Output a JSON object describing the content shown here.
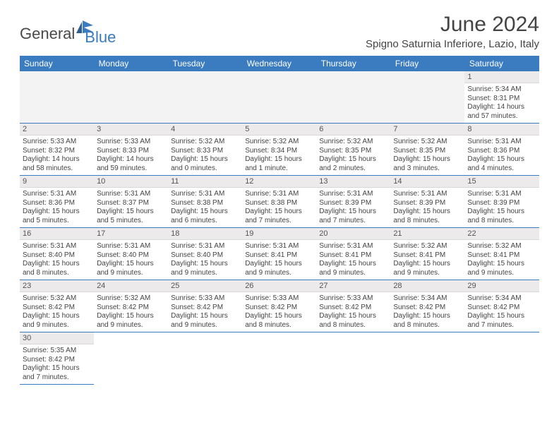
{
  "logo": {
    "general": "General",
    "blue": "Blue"
  },
  "title": "June 2024",
  "location": "Spigno Saturnia Inferiore, Lazio, Italy",
  "colors": {
    "header_bg": "#3b7bbf",
    "header_fg": "#ffffff",
    "daybar_bg": "#eceaea",
    "border": "#3b7bbf",
    "text": "#444444"
  },
  "weekdays": [
    "Sunday",
    "Monday",
    "Tuesday",
    "Wednesday",
    "Thursday",
    "Friday",
    "Saturday"
  ],
  "weeks": [
    [
      null,
      null,
      null,
      null,
      null,
      null,
      {
        "n": "1",
        "sr": "Sunrise: 5:34 AM",
        "ss": "Sunset: 8:31 PM",
        "dl": "Daylight: 14 hours and 57 minutes."
      }
    ],
    [
      {
        "n": "2",
        "sr": "Sunrise: 5:33 AM",
        "ss": "Sunset: 8:32 PM",
        "dl": "Daylight: 14 hours and 58 minutes."
      },
      {
        "n": "3",
        "sr": "Sunrise: 5:33 AM",
        "ss": "Sunset: 8:33 PM",
        "dl": "Daylight: 14 hours and 59 minutes."
      },
      {
        "n": "4",
        "sr": "Sunrise: 5:32 AM",
        "ss": "Sunset: 8:33 PM",
        "dl": "Daylight: 15 hours and 0 minutes."
      },
      {
        "n": "5",
        "sr": "Sunrise: 5:32 AM",
        "ss": "Sunset: 8:34 PM",
        "dl": "Daylight: 15 hours and 1 minute."
      },
      {
        "n": "6",
        "sr": "Sunrise: 5:32 AM",
        "ss": "Sunset: 8:35 PM",
        "dl": "Daylight: 15 hours and 2 minutes."
      },
      {
        "n": "7",
        "sr": "Sunrise: 5:32 AM",
        "ss": "Sunset: 8:35 PM",
        "dl": "Daylight: 15 hours and 3 minutes."
      },
      {
        "n": "8",
        "sr": "Sunrise: 5:31 AM",
        "ss": "Sunset: 8:36 PM",
        "dl": "Daylight: 15 hours and 4 minutes."
      }
    ],
    [
      {
        "n": "9",
        "sr": "Sunrise: 5:31 AM",
        "ss": "Sunset: 8:36 PM",
        "dl": "Daylight: 15 hours and 5 minutes."
      },
      {
        "n": "10",
        "sr": "Sunrise: 5:31 AM",
        "ss": "Sunset: 8:37 PM",
        "dl": "Daylight: 15 hours and 5 minutes."
      },
      {
        "n": "11",
        "sr": "Sunrise: 5:31 AM",
        "ss": "Sunset: 8:38 PM",
        "dl": "Daylight: 15 hours and 6 minutes."
      },
      {
        "n": "12",
        "sr": "Sunrise: 5:31 AM",
        "ss": "Sunset: 8:38 PM",
        "dl": "Daylight: 15 hours and 7 minutes."
      },
      {
        "n": "13",
        "sr": "Sunrise: 5:31 AM",
        "ss": "Sunset: 8:39 PM",
        "dl": "Daylight: 15 hours and 7 minutes."
      },
      {
        "n": "14",
        "sr": "Sunrise: 5:31 AM",
        "ss": "Sunset: 8:39 PM",
        "dl": "Daylight: 15 hours and 8 minutes."
      },
      {
        "n": "15",
        "sr": "Sunrise: 5:31 AM",
        "ss": "Sunset: 8:39 PM",
        "dl": "Daylight: 15 hours and 8 minutes."
      }
    ],
    [
      {
        "n": "16",
        "sr": "Sunrise: 5:31 AM",
        "ss": "Sunset: 8:40 PM",
        "dl": "Daylight: 15 hours and 8 minutes."
      },
      {
        "n": "17",
        "sr": "Sunrise: 5:31 AM",
        "ss": "Sunset: 8:40 PM",
        "dl": "Daylight: 15 hours and 9 minutes."
      },
      {
        "n": "18",
        "sr": "Sunrise: 5:31 AM",
        "ss": "Sunset: 8:40 PM",
        "dl": "Daylight: 15 hours and 9 minutes."
      },
      {
        "n": "19",
        "sr": "Sunrise: 5:31 AM",
        "ss": "Sunset: 8:41 PM",
        "dl": "Daylight: 15 hours and 9 minutes."
      },
      {
        "n": "20",
        "sr": "Sunrise: 5:31 AM",
        "ss": "Sunset: 8:41 PM",
        "dl": "Daylight: 15 hours and 9 minutes."
      },
      {
        "n": "21",
        "sr": "Sunrise: 5:32 AM",
        "ss": "Sunset: 8:41 PM",
        "dl": "Daylight: 15 hours and 9 minutes."
      },
      {
        "n": "22",
        "sr": "Sunrise: 5:32 AM",
        "ss": "Sunset: 8:41 PM",
        "dl": "Daylight: 15 hours and 9 minutes."
      }
    ],
    [
      {
        "n": "23",
        "sr": "Sunrise: 5:32 AM",
        "ss": "Sunset: 8:42 PM",
        "dl": "Daylight: 15 hours and 9 minutes."
      },
      {
        "n": "24",
        "sr": "Sunrise: 5:32 AM",
        "ss": "Sunset: 8:42 PM",
        "dl": "Daylight: 15 hours and 9 minutes."
      },
      {
        "n": "25",
        "sr": "Sunrise: 5:33 AM",
        "ss": "Sunset: 8:42 PM",
        "dl": "Daylight: 15 hours and 9 minutes."
      },
      {
        "n": "26",
        "sr": "Sunrise: 5:33 AM",
        "ss": "Sunset: 8:42 PM",
        "dl": "Daylight: 15 hours and 8 minutes."
      },
      {
        "n": "27",
        "sr": "Sunrise: 5:33 AM",
        "ss": "Sunset: 8:42 PM",
        "dl": "Daylight: 15 hours and 8 minutes."
      },
      {
        "n": "28",
        "sr": "Sunrise: 5:34 AM",
        "ss": "Sunset: 8:42 PM",
        "dl": "Daylight: 15 hours and 8 minutes."
      },
      {
        "n": "29",
        "sr": "Sunrise: 5:34 AM",
        "ss": "Sunset: 8:42 PM",
        "dl": "Daylight: 15 hours and 7 minutes."
      }
    ],
    [
      {
        "n": "30",
        "sr": "Sunrise: 5:35 AM",
        "ss": "Sunset: 8:42 PM",
        "dl": "Daylight: 15 hours and 7 minutes."
      },
      null,
      null,
      null,
      null,
      null,
      null
    ]
  ]
}
